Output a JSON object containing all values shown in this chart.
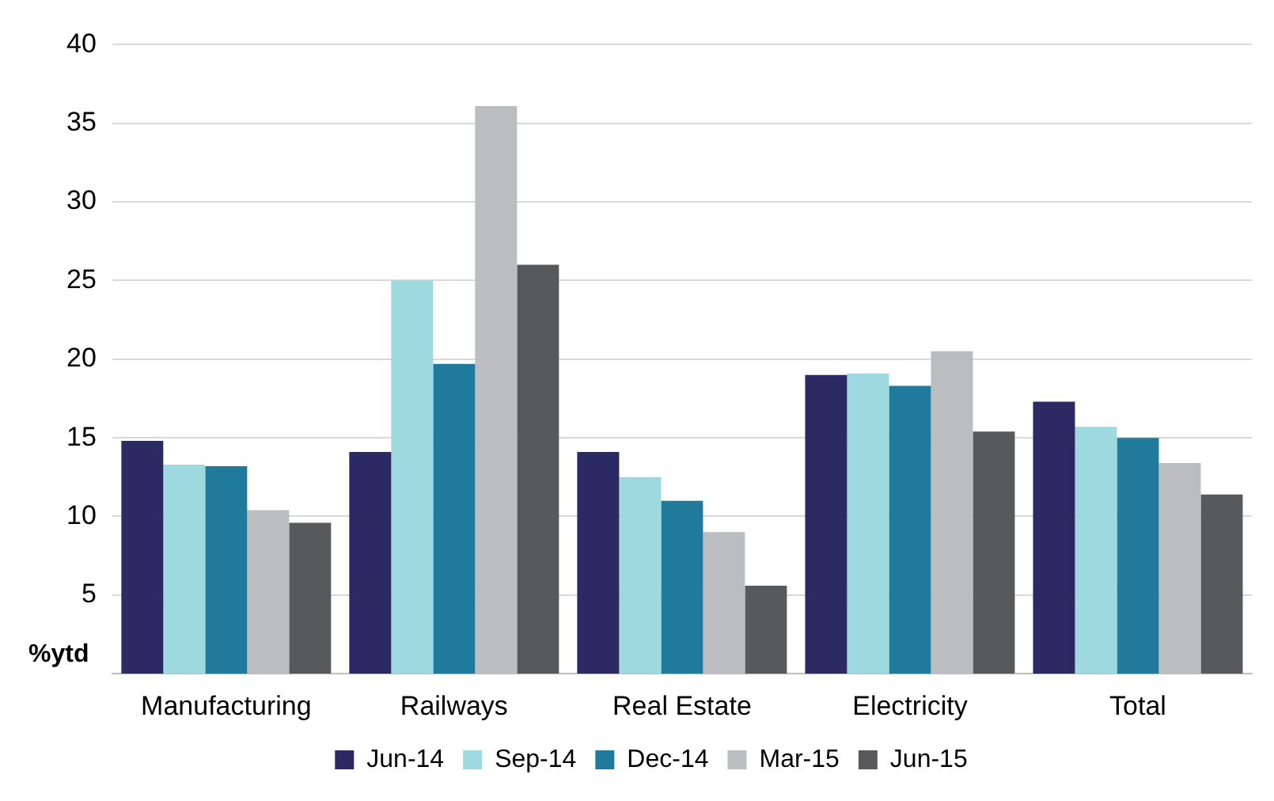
{
  "chart_data": {
    "type": "bar",
    "ylabel": "%ytd",
    "categories": [
      "Manufacturing",
      "Railways",
      "Real Estate",
      "Electricity",
      "Total"
    ],
    "series": [
      {
        "name": "Jun-14",
        "color": "#2b2a63",
        "values": [
          14.8,
          14.1,
          14.1,
          19.0,
          17.3
        ]
      },
      {
        "name": "Sep-14",
        "color": "#9ed9e0",
        "values": [
          13.3,
          25.0,
          12.5,
          19.1,
          15.7
        ]
      },
      {
        "name": "Dec-14",
        "color": "#1f7a9c",
        "values": [
          13.2,
          19.7,
          11.0,
          18.3,
          15.0
        ]
      },
      {
        "name": "Mar-15",
        "color": "#bbbdc0",
        "values": [
          10.4,
          36.1,
          9.0,
          20.5,
          13.4
        ]
      },
      {
        "name": "Jun-15",
        "color": "#58595b",
        "values": [
          9.6,
          26.0,
          5.6,
          15.4,
          11.4
        ]
      }
    ],
    "ylim": [
      0,
      40
    ],
    "yticks": [
      5,
      10,
      15,
      20,
      25,
      30,
      35,
      40
    ],
    "grid": "y",
    "legend": "bottom"
  }
}
